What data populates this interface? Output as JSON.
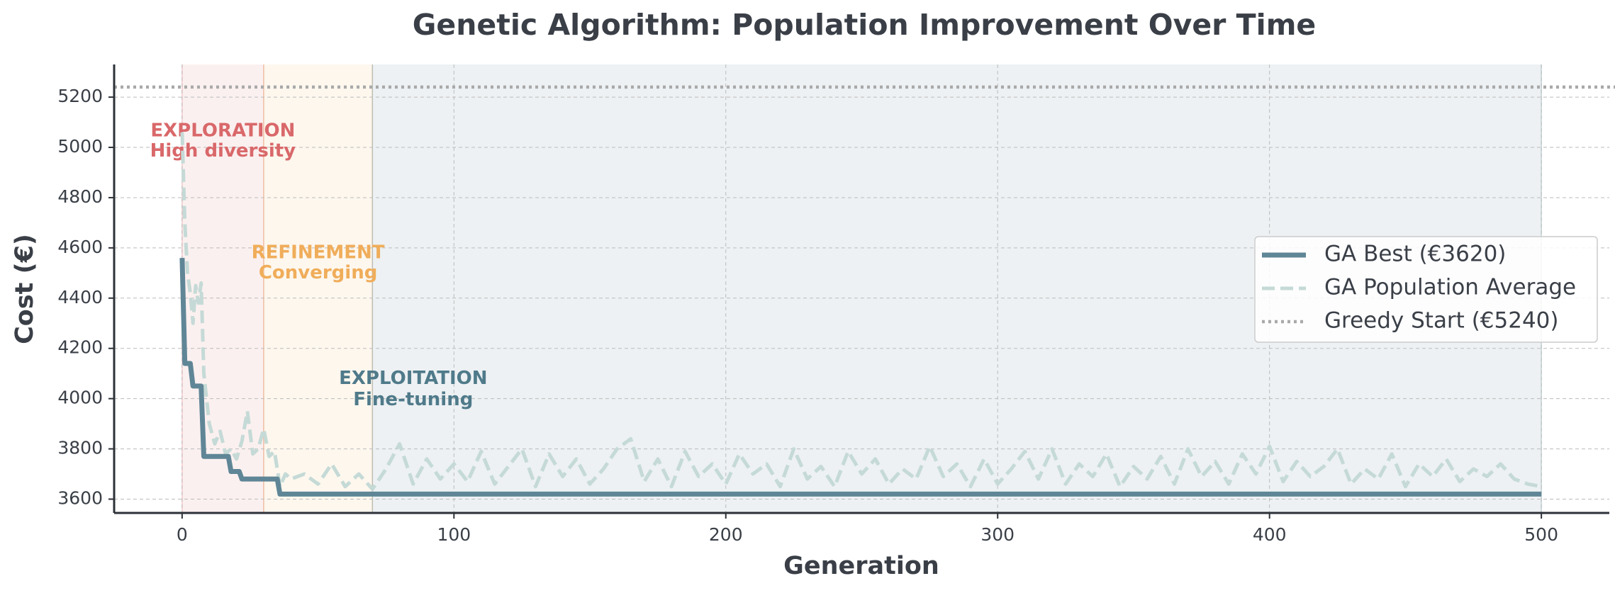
{
  "chart_data": {
    "type": "line",
    "title": "Genetic Algorithm: Population Improvement Over Time",
    "xlabel": "Generation",
    "ylabel": "Cost (€)",
    "xlim": [
      -25,
      525
    ],
    "ylim": [
      3545,
      5330
    ],
    "xticks": [
      0,
      100,
      200,
      300,
      400,
      500
    ],
    "yticks": [
      3600,
      3800,
      4000,
      4200,
      4400,
      4600,
      4800,
      5000,
      5200
    ],
    "grid": true,
    "legend": "right",
    "phases": [
      {
        "start": 0,
        "end": 30,
        "label": "EXPLORATION",
        "sublabel": "High diversity",
        "color": "#d9686a"
      },
      {
        "start": 30,
        "end": 70,
        "label": "REFINEMENT",
        "sublabel": "Converging",
        "color": "#f0ad5a"
      },
      {
        "start": 70,
        "end": 500,
        "label": "EXPLOITATION",
        "sublabel": "Fine-tuning",
        "color": "#4f7a8a"
      }
    ],
    "series": [
      {
        "name": "GA Best (€3620)",
        "color": "#5f8696",
        "style": "solid",
        "x": [
          0,
          1,
          3,
          4,
          7,
          8,
          17,
          18,
          21,
          22,
          35,
          36,
          500
        ],
        "values": [
          4560,
          4140,
          4140,
          4050,
          4050,
          3770,
          3770,
          3710,
          3710,
          3680,
          3680,
          3620,
          3620
        ]
      },
      {
        "name": "GA Population Average",
        "color": "#c5dad6",
        "style": "dashed",
        "x": [
          0,
          1,
          2,
          3,
          4,
          5,
          6,
          7,
          8,
          10,
          12,
          14,
          16,
          18,
          20,
          22,
          24,
          26,
          28,
          30,
          32,
          34,
          36,
          38,
          40,
          45,
          50,
          55,
          60,
          65,
          70,
          75,
          80,
          85,
          90,
          95,
          100,
          105,
          110,
          115,
          120,
          125,
          130,
          135,
          140,
          145,
          150,
          155,
          160,
          165,
          170,
          175,
          180,
          185,
          190,
          195,
          200,
          205,
          210,
          215,
          220,
          225,
          230,
          235,
          240,
          245,
          250,
          255,
          260,
          265,
          270,
          275,
          280,
          285,
          290,
          295,
          300,
          305,
          310,
          315,
          320,
          325,
          330,
          335,
          340,
          345,
          350,
          355,
          360,
          365,
          370,
          375,
          380,
          385,
          390,
          395,
          400,
          405,
          410,
          415,
          420,
          425,
          430,
          435,
          440,
          445,
          450,
          455,
          460,
          465,
          470,
          475,
          480,
          485,
          490,
          495,
          500
        ],
        "values": [
          5060,
          4700,
          4500,
          4420,
          4300,
          4450,
          4380,
          4460,
          4100,
          3900,
          3820,
          3870,
          3780,
          3800,
          3760,
          3830,
          3950,
          3780,
          3800,
          3880,
          3770,
          3790,
          3650,
          3700,
          3680,
          3700,
          3660,
          3740,
          3650,
          3700,
          3640,
          3720,
          3820,
          3660,
          3760,
          3680,
          3740,
          3670,
          3790,
          3660,
          3730,
          3800,
          3650,
          3780,
          3690,
          3760,
          3660,
          3720,
          3800,
          3840,
          3670,
          3760,
          3650,
          3790,
          3690,
          3740,
          3660,
          3780,
          3700,
          3740,
          3650,
          3800,
          3680,
          3730,
          3650,
          3790,
          3700,
          3760,
          3660,
          3720,
          3680,
          3810,
          3690,
          3740,
          3650,
          3760,
          3660,
          3720,
          3790,
          3680,
          3800,
          3660,
          3740,
          3690,
          3780,
          3650,
          3730,
          3680,
          3770,
          3660,
          3800,
          3690,
          3750,
          3660,
          3780,
          3700,
          3810,
          3670,
          3750,
          3690,
          3730,
          3800,
          3660,
          3720,
          3680,
          3780,
          3650,
          3740,
          3690,
          3760,
          3670,
          3720,
          3690,
          3740,
          3680,
          3660,
          3650
        ]
      },
      {
        "name": "Greedy Start (€5240)",
        "color": "#a9a9a9",
        "style": "dotted",
        "values": [
          5240
        ]
      }
    ]
  }
}
